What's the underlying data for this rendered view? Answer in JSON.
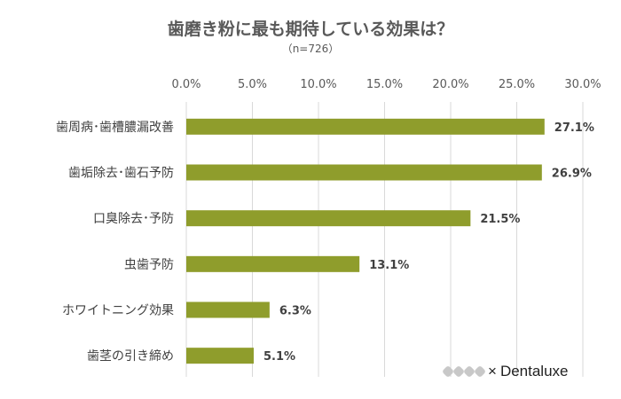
{
  "chart_data": {
    "type": "bar",
    "orientation": "horizontal",
    "title": "歯磨き粉に最も期待している効果は？",
    "subtitle": "（n=726）",
    "categories": [
      "歯周病･歯槽膿漏改善",
      "歯垢除去･歯石予防",
      "口臭除去･予防",
      "虫歯予防",
      "ホワイトニング効果",
      "歯茎の引き締め"
    ],
    "values": [
      27.1,
      26.9,
      21.5,
      13.1,
      6.3,
      5.1
    ],
    "data_labels": [
      "27.1%",
      "26.9%",
      "21.5%",
      "13.1%",
      "6.3%",
      "5.1%"
    ],
    "xlim": [
      0,
      30
    ],
    "ticks": [
      "0.0%",
      "5.0%",
      "10.0%",
      "15.0%",
      "20.0%",
      "25.0%",
      "30.0%"
    ],
    "tick_values": [
      0,
      5,
      10,
      15,
      20,
      25,
      30
    ],
    "axis_position": "top",
    "grid": true,
    "bar_color": "#8f9d2c",
    "grid_color": "#d9d9d9"
  },
  "credit": {
    "logo": "WW",
    "separator": "×",
    "brand": "Dentaluxe"
  }
}
